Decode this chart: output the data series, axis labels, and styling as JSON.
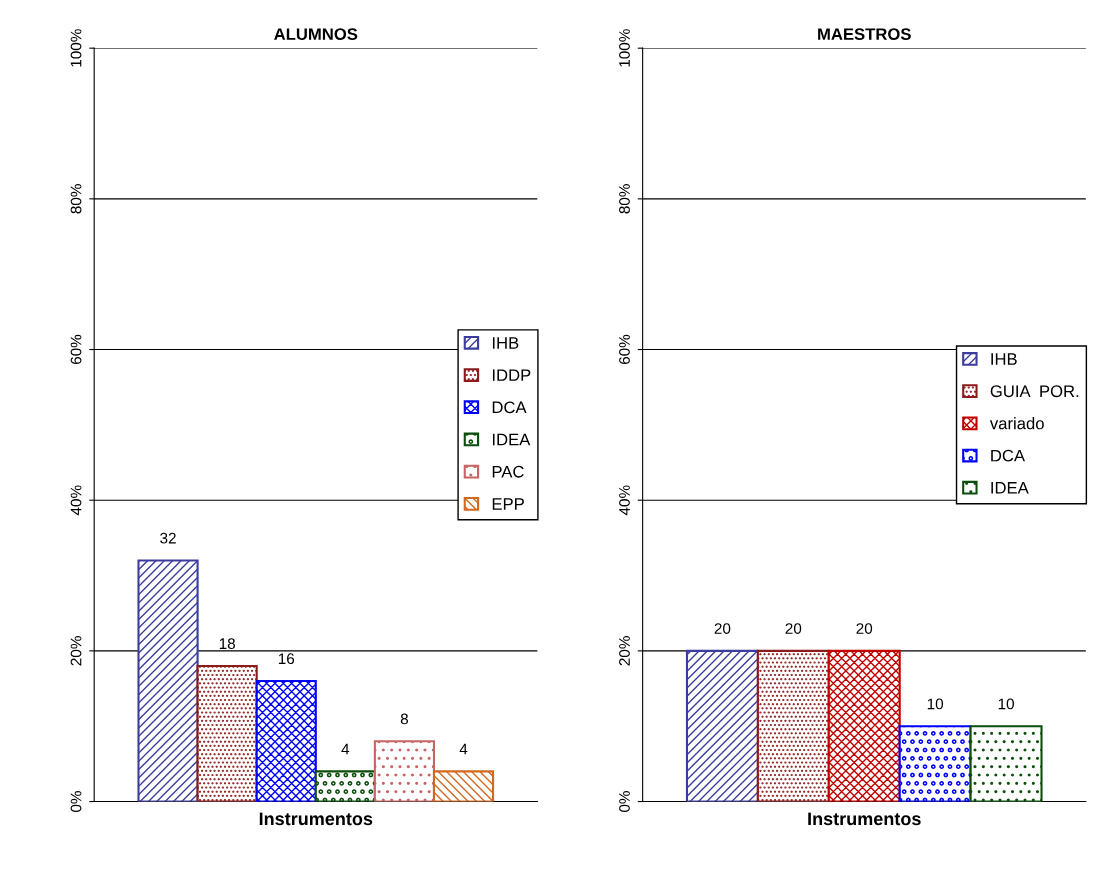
{
  "chart_data": [
    {
      "type": "bar",
      "title": "ALUMNOS",
      "xlabel": "Instrumentos",
      "categories": [
        null
      ],
      "ylim": [
        0,
        100
      ],
      "yticks": [
        {
          "value": 0,
          "label": "0%"
        },
        {
          "value": 20,
          "label": "20%"
        },
        {
          "value": 40,
          "label": "40%"
        },
        {
          "value": 60,
          "label": "60%"
        },
        {
          "value": 80,
          "label": "80%"
        },
        {
          "value": 100,
          "label": "100%"
        }
      ],
      "grid": "y",
      "legend": "right",
      "data_labels": true,
      "series": [
        {
          "name": "IHB",
          "color": "#3c3ca0",
          "values": [
            32
          ]
        },
        {
          "name": "IDDP",
          "color": "#8b1a1a",
          "values": [
            18
          ]
        },
        {
          "name": "DCA",
          "color": "#0000ff",
          "values": [
            16
          ]
        },
        {
          "name": "IDEA",
          "color": "#0b4d0b",
          "values": [
            4
          ]
        },
        {
          "name": "PAC",
          "color": "#c86464",
          "values": [
            8
          ]
        },
        {
          "name": "EPP",
          "color": "#d2691e",
          "values": [
            4
          ]
        }
      ]
    },
    {
      "type": "bar",
      "title": "MAESTROS",
      "xlabel": "Instrumentos",
      "categories": [
        null
      ],
      "ylim": [
        0,
        100
      ],
      "yticks": [
        {
          "value": 0,
          "label": "0%"
        },
        {
          "value": 20,
          "label": "20%"
        },
        {
          "value": 40,
          "label": "40%"
        },
        {
          "value": 60,
          "label": "60%"
        },
        {
          "value": 80,
          "label": "80%"
        },
        {
          "value": 100,
          "label": "100%"
        }
      ],
      "grid": "y",
      "legend": "right",
      "data_labels": true,
      "series": [
        {
          "name": "IHB",
          "color": "#3c3ca0",
          "values": [
            20
          ]
        },
        {
          "name": "GUIA  POR.",
          "color": "#8b1a1a",
          "values": [
            20
          ]
        },
        {
          "name": "variado",
          "color": "#c00000",
          "values": [
            20
          ]
        },
        {
          "name": "DCA",
          "color": "#0000ff",
          "values": [
            10
          ]
        },
        {
          "name": "IDEA",
          "color": "#0b4d0b",
          "values": [
            10
          ]
        }
      ]
    }
  ]
}
